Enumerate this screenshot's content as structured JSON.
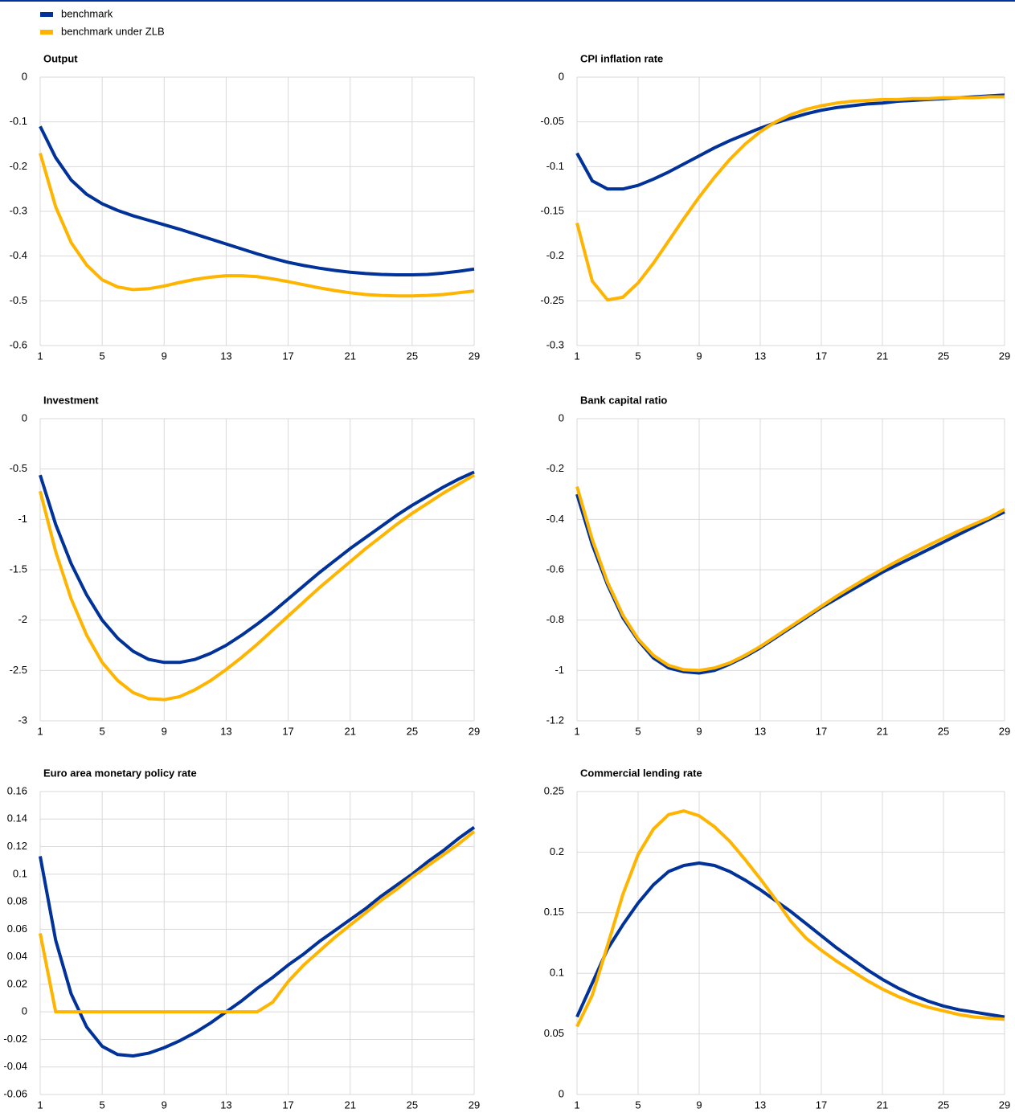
{
  "chart_data": [
    {
      "type": "line",
      "title": "Output",
      "x": [
        1,
        2,
        3,
        4,
        5,
        6,
        7,
        8,
        9,
        10,
        11,
        12,
        13,
        14,
        15,
        16,
        17,
        18,
        19,
        20,
        21,
        22,
        23,
        24,
        25,
        26,
        27,
        28,
        29
      ],
      "xlim": [
        1,
        29
      ],
      "xticks": [
        1,
        5,
        9,
        13,
        17,
        21,
        25,
        29
      ],
      "ylim": [
        -0.6,
        0
      ],
      "yticks": [
        0,
        -0.1,
        -0.2,
        -0.3,
        -0.4,
        -0.5,
        -0.6
      ],
      "grid": true,
      "series": [
        {
          "name": "benchmark",
          "color": "#003299",
          "values": [
            -0.11,
            -0.18,
            -0.23,
            -0.262,
            -0.283,
            -0.298,
            -0.31,
            -0.32,
            -0.33,
            -0.34,
            -0.351,
            -0.362,
            -0.373,
            -0.384,
            -0.395,
            -0.405,
            -0.414,
            -0.421,
            -0.427,
            -0.432,
            -0.436,
            -0.439,
            -0.441,
            -0.442,
            -0.442,
            -0.441,
            -0.438,
            -0.434,
            -0.429
          ]
        },
        {
          "name": "benchmark under ZLB",
          "color": "#ffb400",
          "values": [
            -0.17,
            -0.29,
            -0.37,
            -0.42,
            -0.453,
            -0.469,
            -0.475,
            -0.473,
            -0.467,
            -0.459,
            -0.452,
            -0.447,
            -0.444,
            -0.444,
            -0.446,
            -0.451,
            -0.457,
            -0.464,
            -0.471,
            -0.477,
            -0.482,
            -0.486,
            -0.488,
            -0.489,
            -0.489,
            -0.488,
            -0.486,
            -0.482,
            -0.478
          ]
        }
      ]
    },
    {
      "type": "line",
      "title": "CPI inflation rate",
      "x": [
        1,
        2,
        3,
        4,
        5,
        6,
        7,
        8,
        9,
        10,
        11,
        12,
        13,
        14,
        15,
        16,
        17,
        18,
        19,
        20,
        21,
        22,
        23,
        24,
        25,
        26,
        27,
        28,
        29
      ],
      "xlim": [
        1,
        29
      ],
      "xticks": [
        1,
        5,
        9,
        13,
        17,
        21,
        25,
        29
      ],
      "ylim": [
        -0.3,
        0
      ],
      "yticks": [
        0,
        -0.05,
        -0.1,
        -0.15,
        -0.2,
        -0.25,
        -0.3
      ],
      "grid": true,
      "series": [
        {
          "name": "benchmark",
          "color": "#003299",
          "values": [
            -0.085,
            -0.116,
            -0.125,
            -0.125,
            -0.121,
            -0.114,
            -0.106,
            -0.097,
            -0.088,
            -0.079,
            -0.071,
            -0.064,
            -0.057,
            -0.051,
            -0.046,
            -0.041,
            -0.037,
            -0.034,
            -0.032,
            -0.03,
            -0.029,
            -0.027,
            -0.026,
            -0.025,
            -0.024,
            -0.023,
            -0.022,
            -0.021,
            -0.02
          ]
        },
        {
          "name": "benchmark under ZLB",
          "color": "#ffb400",
          "values": [
            -0.163,
            -0.228,
            -0.249,
            -0.246,
            -0.23,
            -0.208,
            -0.183,
            -0.158,
            -0.134,
            -0.112,
            -0.092,
            -0.075,
            -0.061,
            -0.05,
            -0.042,
            -0.036,
            -0.032,
            -0.029,
            -0.027,
            -0.026,
            -0.025,
            -0.025,
            -0.024,
            -0.024,
            -0.023,
            -0.023,
            -0.023,
            -0.022,
            -0.022
          ]
        }
      ]
    },
    {
      "type": "line",
      "title": "Investment",
      "x": [
        1,
        2,
        3,
        4,
        5,
        6,
        7,
        8,
        9,
        10,
        11,
        12,
        13,
        14,
        15,
        16,
        17,
        18,
        19,
        20,
        21,
        22,
        23,
        24,
        25,
        26,
        27,
        28,
        29
      ],
      "xlim": [
        1,
        29
      ],
      "xticks": [
        1,
        5,
        9,
        13,
        17,
        21,
        25,
        29
      ],
      "ylim": [
        -3,
        0
      ],
      "yticks": [
        0,
        -0.5,
        -1,
        -1.5,
        -2,
        -2.5,
        -3
      ],
      "grid": true,
      "series": [
        {
          "name": "benchmark",
          "color": "#003299",
          "values": [
            -0.56,
            -1.05,
            -1.44,
            -1.75,
            -2.0,
            -2.18,
            -2.31,
            -2.39,
            -2.42,
            -2.42,
            -2.39,
            -2.33,
            -2.25,
            -2.15,
            -2.04,
            -1.92,
            -1.79,
            -1.66,
            -1.53,
            -1.41,
            -1.29,
            -1.18,
            -1.07,
            -0.96,
            -0.86,
            -0.77,
            -0.68,
            -0.6,
            -0.53
          ]
        },
        {
          "name": "benchmark under ZLB",
          "color": "#ffb400",
          "values": [
            -0.72,
            -1.32,
            -1.79,
            -2.15,
            -2.42,
            -2.6,
            -2.72,
            -2.78,
            -2.79,
            -2.76,
            -2.69,
            -2.6,
            -2.49,
            -2.37,
            -2.24,
            -2.1,
            -1.96,
            -1.82,
            -1.68,
            -1.55,
            -1.42,
            -1.29,
            -1.17,
            -1.05,
            -0.94,
            -0.84,
            -0.74,
            -0.65,
            -0.56
          ]
        }
      ]
    },
    {
      "type": "line",
      "title": "Bank capital ratio",
      "x": [
        1,
        2,
        3,
        4,
        5,
        6,
        7,
        8,
        9,
        10,
        11,
        12,
        13,
        14,
        15,
        16,
        17,
        18,
        19,
        20,
        21,
        22,
        23,
        24,
        25,
        26,
        27,
        28,
        29
      ],
      "xlim": [
        1,
        29
      ],
      "xticks": [
        1,
        5,
        9,
        13,
        17,
        21,
        25,
        29
      ],
      "ylim": [
        -1.2,
        0
      ],
      "yticks": [
        0,
        -0.2,
        -0.4,
        -0.6,
        -0.8,
        -1,
        -1.2
      ],
      "grid": true,
      "series": [
        {
          "name": "benchmark",
          "color": "#003299",
          "values": [
            -0.3,
            -0.5,
            -0.66,
            -0.79,
            -0.88,
            -0.95,
            -0.99,
            -1.005,
            -1.01,
            -1.0,
            -0.975,
            -0.945,
            -0.91,
            -0.87,
            -0.83,
            -0.79,
            -0.75,
            -0.715,
            -0.68,
            -0.645,
            -0.61,
            -0.58,
            -0.55,
            -0.52,
            -0.49,
            -0.46,
            -0.43,
            -0.4,
            -0.37
          ]
        },
        {
          "name": "benchmark under ZLB",
          "color": "#ffb400",
          "values": [
            -0.27,
            -0.48,
            -0.65,
            -0.78,
            -0.875,
            -0.94,
            -0.98,
            -0.997,
            -1.0,
            -0.99,
            -0.97,
            -0.94,
            -0.905,
            -0.865,
            -0.825,
            -0.785,
            -0.745,
            -0.705,
            -0.668,
            -0.632,
            -0.598,
            -0.565,
            -0.533,
            -0.503,
            -0.474,
            -0.446,
            -0.419,
            -0.393,
            -0.36
          ]
        }
      ]
    },
    {
      "type": "line",
      "title": "Euro area monetary policy rate",
      "x": [
        1,
        2,
        3,
        4,
        5,
        6,
        7,
        8,
        9,
        10,
        11,
        12,
        13,
        14,
        15,
        16,
        17,
        18,
        19,
        20,
        21,
        22,
        23,
        24,
        25,
        26,
        27,
        28,
        29
      ],
      "xlim": [
        1,
        29
      ],
      "xticks": [
        1,
        5,
        9,
        13,
        17,
        21,
        25,
        29
      ],
      "ylim": [
        -0.06,
        0.16
      ],
      "yticks": [
        0.16,
        0.14,
        0.12,
        0.1,
        0.08,
        0.06,
        0.04,
        0.02,
        0,
        -0.02,
        -0.04,
        -0.06
      ],
      "grid": true,
      "series": [
        {
          "name": "benchmark",
          "color": "#003299",
          "values": [
            0.113,
            0.052,
            0.013,
            -0.011,
            -0.025,
            -0.031,
            -0.032,
            -0.03,
            -0.026,
            -0.021,
            -0.015,
            -0.008,
            0.0,
            0.008,
            0.017,
            0.025,
            0.034,
            0.042,
            0.051,
            0.059,
            0.067,
            0.075,
            0.084,
            0.092,
            0.1,
            0.109,
            0.117,
            0.126,
            0.134
          ]
        },
        {
          "name": "benchmark under ZLB",
          "color": "#ffb400",
          "values": [
            0.057,
            0,
            0,
            0,
            0,
            0,
            0,
            0,
            0,
            0,
            0,
            0,
            0,
            0,
            0,
            0.007,
            0.022,
            0.034,
            0.044,
            0.054,
            0.063,
            0.072,
            0.081,
            0.089,
            0.098,
            0.106,
            0.114,
            0.122,
            0.131
          ]
        }
      ]
    },
    {
      "type": "line",
      "title": "Commercial lending rate",
      "x": [
        1,
        2,
        3,
        4,
        5,
        6,
        7,
        8,
        9,
        10,
        11,
        12,
        13,
        14,
        15,
        16,
        17,
        18,
        19,
        20,
        21,
        22,
        23,
        24,
        25,
        26,
        27,
        28,
        29
      ],
      "xlim": [
        1,
        29
      ],
      "xticks": [
        1,
        5,
        9,
        13,
        17,
        21,
        25,
        29
      ],
      "ylim": [
        0,
        0.25
      ],
      "yticks": [
        0.25,
        0.2,
        0.15,
        0.1,
        0.05,
        0
      ],
      "grid": true,
      "series": [
        {
          "name": "benchmark",
          "color": "#003299",
          "values": [
            0.064,
            0.092,
            0.12,
            0.14,
            0.158,
            0.173,
            0.184,
            0.189,
            0.191,
            0.189,
            0.184,
            0.177,
            0.169,
            0.16,
            0.151,
            0.141,
            0.131,
            0.121,
            0.112,
            0.103,
            0.095,
            0.088,
            0.082,
            0.077,
            0.073,
            0.07,
            0.068,
            0.066,
            0.064
          ]
        },
        {
          "name": "benchmark under ZLB",
          "color": "#ffb400",
          "values": [
            0.056,
            0.082,
            0.123,
            0.165,
            0.198,
            0.219,
            0.231,
            0.234,
            0.23,
            0.221,
            0.209,
            0.194,
            0.178,
            0.161,
            0.143,
            0.129,
            0.119,
            0.11,
            0.102,
            0.094,
            0.087,
            0.081,
            0.076,
            0.072,
            0.069,
            0.066,
            0.064,
            0.063,
            0.062
          ]
        }
      ]
    }
  ]
}
